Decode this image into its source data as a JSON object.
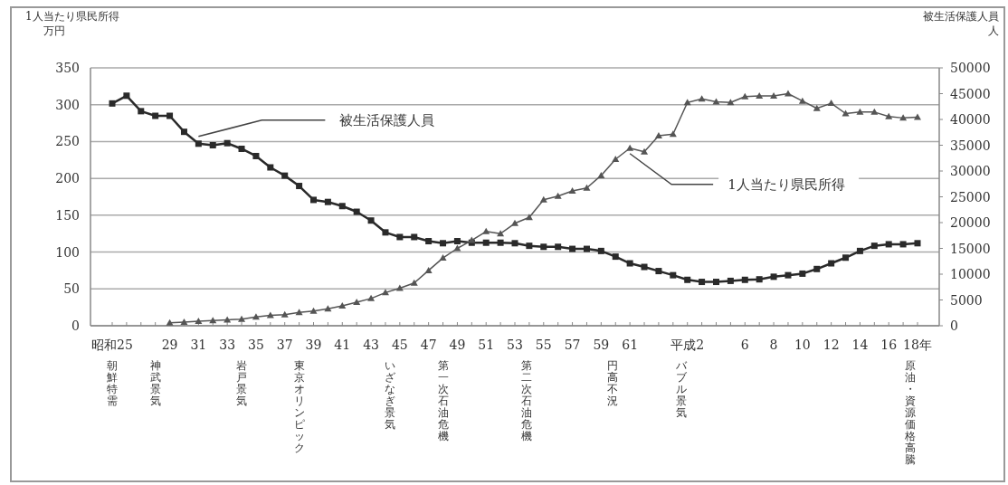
{
  "chart_data": {
    "type": "line",
    "ylabel": "1人当たり県民所得",
    "y2label": "被生活保護人員",
    "categories": [
      "昭和25",
      null,
      null,
      null,
      "29",
      null,
      "31",
      null,
      "33",
      null,
      "35",
      null,
      "37",
      null,
      "39",
      null,
      "41",
      null,
      "43",
      null,
      "45",
      null,
      "47",
      null,
      "49",
      null,
      "51",
      null,
      "53",
      null,
      "55",
      null,
      "57",
      null,
      "59",
      null,
      "61",
      null,
      null,
      null,
      "平成2",
      null,
      null,
      null,
      "6",
      null,
      "8",
      null,
      "10",
      null,
      "12",
      null,
      "14",
      null,
      "16",
      null,
      "18年"
    ],
    "series": [
      {
        "name": "被生活保護人員",
        "color": "#2a2a2a",
        "axis": "y2",
        "marker": "square",
        "values": [
          43100,
          44600,
          41600,
          40700,
          40700,
          37600,
          35300,
          35000,
          35400,
          34300,
          32900,
          30700,
          29100,
          27100,
          24400,
          24000,
          23200,
          22100,
          20400,
          18100,
          17200,
          17200,
          16400,
          16000,
          16400,
          16100,
          16100,
          16100,
          16000,
          15500,
          15300,
          15300,
          14900,
          14900,
          14500,
          13400,
          12100,
          11400,
          10600,
          9800,
          8900,
          8500,
          8500,
          8700,
          8900,
          9000,
          9500,
          9800,
          10100,
          11000,
          12100,
          13200,
          14500,
          15500,
          15800,
          15800,
          16000
        ]
      },
      {
        "name": "1人当たり県民所得",
        "color": "#555555",
        "axis": "y",
        "marker": "triangle",
        "values": [
          null,
          null,
          null,
          null,
          4,
          5,
          6,
          7,
          8,
          9,
          12,
          14,
          15,
          18,
          20,
          23,
          27,
          32,
          37,
          45,
          51,
          58,
          75,
          92,
          105,
          116,
          128,
          125,
          139,
          147,
          171,
          176,
          183,
          187,
          204,
          226,
          241,
          236,
          258,
          260,
          303,
          308,
          304,
          303,
          311,
          312,
          312,
          315,
          305,
          295,
          302,
          288,
          290,
          290,
          284,
          282,
          283
        ]
      }
    ],
    "ylim": [
      0,
      350
    ],
    "yticks": [
      0,
      50,
      100,
      150,
      200,
      250,
      300,
      350
    ],
    "y2lim": [
      0,
      50000
    ],
    "y2ticks": [
      0,
      5000,
      10000,
      15000,
      20000,
      25000,
      30000,
      35000,
      40000,
      45000,
      50000
    ],
    "grid": "y",
    "line_style": "solid",
    "annotations": [
      "万円",
      "人",
      "朝鮮特需",
      "神武景気",
      "岩戸景気",
      "東京オリンピック",
      "いざなぎ景気",
      "第一次石油危機",
      "第二次石油危機",
      "円高不況",
      "バブル景気",
      "原油・資源価格高騰"
    ]
  }
}
